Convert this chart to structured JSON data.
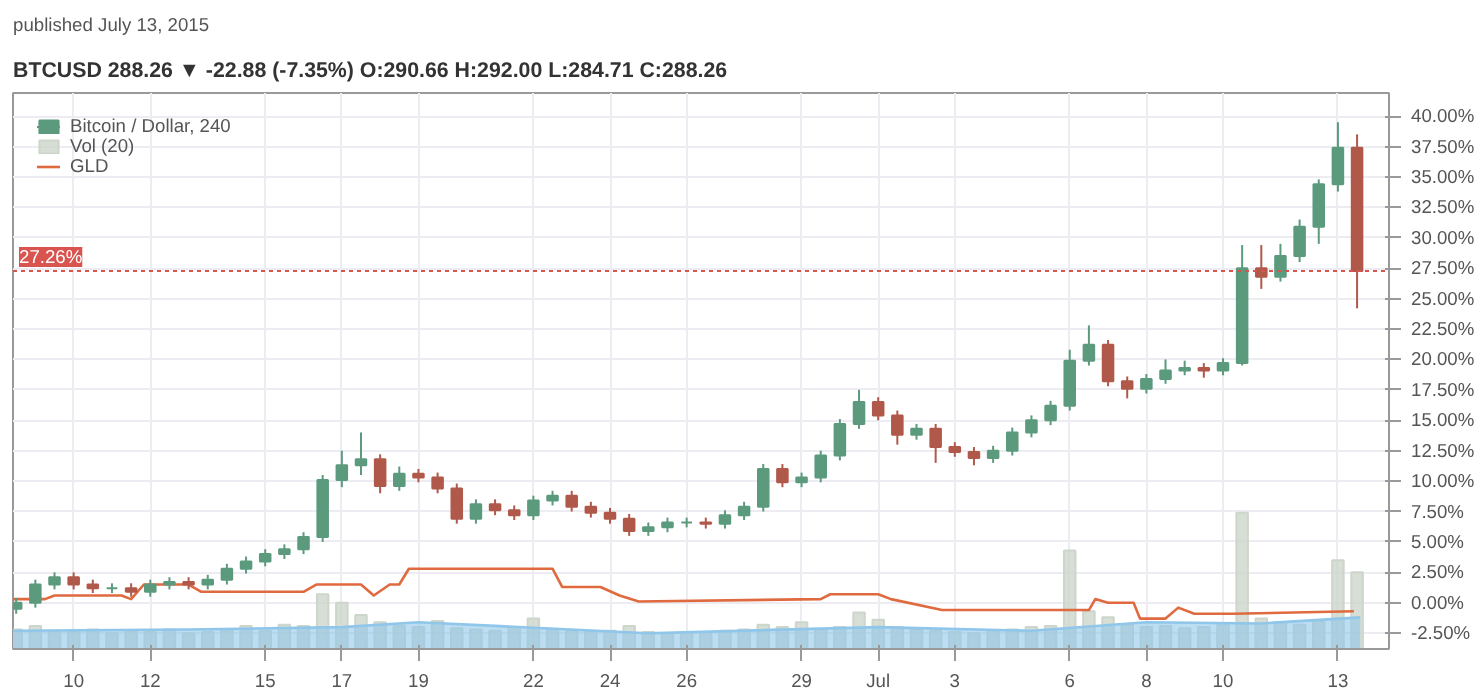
{
  "chart_data": {
    "type": "candlestick",
    "subtitle": "published July 13, 2015",
    "title": "BTCUSD 288.26 ▼ -22.88 (-7.35%) O:290.66 H:292.00 L:284.71 C:288.26",
    "x": [
      "2015-06-08T12:00",
      "2015-06-09T00:00",
      "2015-06-09T12:00",
      "2015-06-10T00:00",
      "2015-06-10T12:00",
      "2015-06-11T00:00",
      "2015-06-11T12:00",
      "2015-06-12T00:00",
      "2015-06-12T12:00",
      "2015-06-13T00:00",
      "2015-06-13T12:00",
      "2015-06-14T00:00",
      "2015-06-14T12:00",
      "2015-06-15T00:00",
      "2015-06-15T12:00",
      "2015-06-16T00:00",
      "2015-06-16T12:00",
      "2015-06-17T00:00",
      "2015-06-17T12:00",
      "2015-06-18T00:00",
      "2015-06-18T12:00",
      "2015-06-19T00:00",
      "2015-06-19T12:00",
      "2015-06-20T00:00",
      "2015-06-20T12:00",
      "2015-06-21T00:00",
      "2015-06-21T12:00",
      "2015-06-22T00:00",
      "2015-06-22T12:00",
      "2015-06-23T00:00",
      "2015-06-23T12:00",
      "2015-06-24T00:00",
      "2015-06-24T12:00",
      "2015-06-25T00:00",
      "2015-06-25T12:00",
      "2015-06-26T00:00",
      "2015-06-26T12:00",
      "2015-06-27T00:00",
      "2015-06-27T12:00",
      "2015-06-28T00:00",
      "2015-06-28T12:00",
      "2015-06-29T00:00",
      "2015-06-29T12:00",
      "2015-06-30T00:00",
      "2015-06-30T12:00",
      "2015-07-01T00:00",
      "2015-07-01T12:00",
      "2015-07-02T00:00",
      "2015-07-02T12:00",
      "2015-07-03T00:00",
      "2015-07-03T12:00",
      "2015-07-04T00:00",
      "2015-07-04T12:00",
      "2015-07-05T00:00",
      "2015-07-05T12:00",
      "2015-07-06T00:00",
      "2015-07-06T12:00",
      "2015-07-07T00:00",
      "2015-07-07T12:00",
      "2015-07-08T00:00",
      "2015-07-08T12:00",
      "2015-07-09T00:00",
      "2015-07-09T12:00",
      "2015-07-10T00:00",
      "2015-07-10T12:00",
      "2015-07-11T00:00",
      "2015-07-11T12:00",
      "2015-07-12T00:00",
      "2015-07-12T12:00",
      "2015-07-13T00:00",
      "2015-07-13T12:00"
    ],
    "xlim": [
      "2015-06-08T10:00",
      "2015-07-14T08:00"
    ],
    "xticks": [
      {
        "value": "2015-06-10",
        "label": "10"
      },
      {
        "value": "2015-06-12",
        "label": "12"
      },
      {
        "value": "2015-06-15",
        "label": "15"
      },
      {
        "value": "2015-06-17",
        "label": "17"
      },
      {
        "value": "2015-06-19",
        "label": "19"
      },
      {
        "value": "2015-06-22",
        "label": "22"
      },
      {
        "value": "2015-06-24",
        "label": "24"
      },
      {
        "value": "2015-06-26",
        "label": "26"
      },
      {
        "value": "2015-06-29",
        "label": "29"
      },
      {
        "value": "2015-07-01",
        "label": "Jul"
      },
      {
        "value": "2015-07-03",
        "label": "3"
      },
      {
        "value": "2015-07-06",
        "label": "6"
      },
      {
        "value": "2015-07-08",
        "label": "8"
      },
      {
        "value": "2015-07-10",
        "label": "10"
      },
      {
        "value": "2015-07-13",
        "label": "13"
      }
    ],
    "ylim": [
      -3.8,
      41.9
    ],
    "yticks": [
      {
        "value": -2.5,
        "label": "-2.50%"
      },
      {
        "value": 0,
        "label": "0.00%"
      },
      {
        "value": 2.5,
        "label": "2.50%"
      },
      {
        "value": 5,
        "label": "5.00%"
      },
      {
        "value": 7.5,
        "label": "7.50%"
      },
      {
        "value": 10,
        "label": "10.00%"
      },
      {
        "value": 12.5,
        "label": "12.50%"
      },
      {
        "value": 15,
        "label": "15.00%"
      },
      {
        "value": 17.5,
        "label": "17.50%"
      },
      {
        "value": 20,
        "label": "20.00%"
      },
      {
        "value": 22.5,
        "label": "22.50%"
      },
      {
        "value": 25,
        "label": "25.00%"
      },
      {
        "value": 27.5,
        "label": "27.50%"
      },
      {
        "value": 30,
        "label": "30.00%"
      },
      {
        "value": 32.5,
        "label": "32.50%"
      },
      {
        "value": 35,
        "label": "35.00%"
      },
      {
        "value": 37.5,
        "label": "37.50%"
      },
      {
        "value": 40,
        "label": "40.00%"
      }
    ],
    "grid": true,
    "legend": "top left",
    "ref_lines": [
      {
        "axis": "y",
        "value": 27.26,
        "label": "27.26%",
        "color": "#d9534f"
      }
    ],
    "series": [
      {
        "name": "Bitcoin / Dollar, 240",
        "ohlc": [
          [
            -0.5,
            0.4,
            -0.9,
            0.0
          ],
          [
            0.0,
            1.9,
            -0.4,
            1.5
          ],
          [
            1.5,
            2.5,
            1.1,
            2.1
          ],
          [
            2.1,
            2.5,
            1.1,
            1.5
          ],
          [
            1.5,
            1.9,
            0.8,
            1.2
          ],
          [
            1.2,
            1.6,
            0.8,
            1.2
          ],
          [
            1.2,
            1.6,
            0.5,
            0.9
          ],
          [
            0.9,
            1.9,
            0.5,
            1.5
          ],
          [
            1.5,
            2.1,
            1.1,
            1.7
          ],
          [
            1.7,
            2.1,
            1.1,
            1.5
          ],
          [
            1.5,
            2.3,
            1.1,
            1.9
          ],
          [
            1.9,
            3.2,
            1.5,
            2.8
          ],
          [
            2.8,
            3.8,
            2.4,
            3.4
          ],
          [
            3.4,
            4.4,
            3.0,
            4.0
          ],
          [
            4.0,
            4.8,
            3.6,
            4.4
          ],
          [
            4.4,
            5.8,
            4.0,
            5.4
          ],
          [
            5.4,
            10.5,
            5.0,
            10.1
          ],
          [
            10.1,
            12.5,
            9.5,
            11.3
          ],
          [
            11.3,
            14.0,
            10.5,
            11.8
          ],
          [
            11.8,
            12.2,
            9.0,
            9.6
          ],
          [
            9.6,
            11.2,
            9.2,
            10.6
          ],
          [
            10.6,
            11.0,
            9.9,
            10.3
          ],
          [
            10.3,
            10.7,
            9.0,
            9.4
          ],
          [
            9.4,
            9.8,
            6.5,
            6.9
          ],
          [
            6.9,
            8.5,
            6.5,
            8.1
          ],
          [
            8.1,
            8.5,
            7.2,
            7.6
          ],
          [
            7.6,
            8.0,
            6.8,
            7.2
          ],
          [
            7.2,
            8.8,
            6.8,
            8.4
          ],
          [
            8.4,
            9.2,
            8.0,
            8.8
          ],
          [
            8.8,
            9.2,
            7.5,
            7.9
          ],
          [
            7.9,
            8.3,
            7.0,
            7.4
          ],
          [
            7.4,
            7.8,
            6.5,
            6.9
          ],
          [
            6.9,
            7.3,
            5.5,
            5.9
          ],
          [
            5.9,
            6.6,
            5.5,
            6.2
          ],
          [
            6.2,
            7.0,
            5.8,
            6.6
          ],
          [
            6.6,
            7.0,
            6.2,
            6.6
          ],
          [
            6.6,
            7.0,
            6.1,
            6.5
          ],
          [
            6.5,
            7.6,
            6.1,
            7.2
          ],
          [
            7.2,
            8.3,
            6.8,
            7.9
          ],
          [
            7.9,
            11.4,
            7.5,
            11.0
          ],
          [
            11.0,
            11.4,
            9.5,
            9.9
          ],
          [
            9.9,
            10.7,
            9.5,
            10.3
          ],
          [
            10.3,
            12.5,
            9.9,
            12.1
          ],
          [
            12.1,
            15.1,
            11.7,
            14.7
          ],
          [
            14.7,
            17.5,
            14.3,
            16.5
          ],
          [
            16.5,
            16.9,
            15.0,
            15.4
          ],
          [
            15.4,
            15.8,
            13.0,
            13.8
          ],
          [
            13.8,
            14.7,
            13.4,
            14.3
          ],
          [
            14.3,
            14.7,
            11.5,
            12.8
          ],
          [
            12.8,
            13.2,
            12.0,
            12.4
          ],
          [
            12.4,
            12.8,
            11.3,
            11.9
          ],
          [
            11.9,
            12.9,
            11.5,
            12.5
          ],
          [
            12.5,
            14.4,
            12.1,
            14.0
          ],
          [
            14.0,
            15.4,
            13.6,
            15.0
          ],
          [
            15.0,
            16.6,
            14.6,
            16.2
          ],
          [
            16.2,
            20.8,
            15.8,
            19.9
          ],
          [
            19.9,
            22.8,
            19.5,
            21.2
          ],
          [
            21.2,
            21.6,
            17.8,
            18.2
          ],
          [
            18.2,
            18.6,
            16.8,
            17.6
          ],
          [
            17.6,
            18.8,
            17.2,
            18.4
          ],
          [
            18.4,
            20.0,
            18.0,
            19.1
          ],
          [
            19.1,
            19.9,
            18.7,
            19.3
          ],
          [
            19.3,
            19.7,
            18.5,
            19.1
          ],
          [
            19.1,
            20.1,
            18.7,
            19.7
          ],
          [
            19.7,
            29.4,
            19.5,
            27.5
          ],
          [
            27.5,
            29.4,
            25.8,
            26.8
          ],
          [
            26.8,
            29.5,
            26.4,
            28.5
          ],
          [
            28.5,
            31.5,
            28.0,
            30.9
          ],
          [
            30.9,
            34.8,
            29.5,
            34.4
          ],
          [
            34.4,
            39.5,
            33.8,
            37.4
          ],
          [
            37.4,
            38.5,
            24.2,
            27.26
          ]
        ],
        "colors": [
          "#5b9a7d",
          "#5b9a7d",
          "#5b9a7d",
          "#b0584a",
          "#b0584a",
          "#5b9a7d",
          "#b0584a",
          "#5b9a7d",
          "#5b9a7d",
          "#b0584a",
          "#5b9a7d",
          "#5b9a7d",
          "#5b9a7d",
          "#5b9a7d",
          "#5b9a7d",
          "#5b9a7d",
          "#5b9a7d",
          "#5b9a7d",
          "#5b9a7d",
          "#b0584a",
          "#5b9a7d",
          "#b0584a",
          "#b0584a",
          "#b0584a",
          "#5b9a7d",
          "#b0584a",
          "#b0584a",
          "#5b9a7d",
          "#5b9a7d",
          "#b0584a",
          "#b0584a",
          "#b0584a",
          "#b0584a",
          "#5b9a7d",
          "#5b9a7d",
          "#5b9a7d",
          "#b0584a",
          "#5b9a7d",
          "#5b9a7d",
          "#5b9a7d",
          "#b0584a",
          "#5b9a7d",
          "#5b9a7d",
          "#5b9a7d",
          "#5b9a7d",
          "#b0584a",
          "#b0584a",
          "#5b9a7d",
          "#b0584a",
          "#b0584a",
          "#b0584a",
          "#5b9a7d",
          "#5b9a7d",
          "#5b9a7d",
          "#5b9a7d",
          "#5b9a7d",
          "#5b9a7d",
          "#b0584a",
          "#b0584a",
          "#5b9a7d",
          "#5b9a7d",
          "#5b9a7d",
          "#b0584a",
          "#5b9a7d",
          "#5b9a7d",
          "#b0584a",
          "#5b9a7d",
          "#5b9a7d",
          "#5b9a7d",
          "#5b9a7d",
          "#b0584a"
        ]
      },
      {
        "name": "Vol (20)",
        "type": "bar",
        "color": "#cdd6ca",
        "base": [
          -3.8,
          -3.8,
          -3.8,
          -3.8,
          -3.8,
          -3.8,
          -3.8,
          -3.8,
          -3.8,
          -3.8,
          -3.8,
          -3.8,
          -3.8,
          -3.8,
          -3.8,
          -3.8,
          -3.8,
          -3.8,
          -3.8,
          -3.8,
          -3.8,
          -3.8,
          -3.8,
          -3.8,
          -3.8,
          -3.8,
          -3.8,
          -3.8,
          -3.8,
          -3.8,
          -3.8,
          -3.8,
          -3.8,
          -3.8,
          -3.8,
          -3.8,
          -3.8,
          -3.8,
          -3.8,
          -3.8,
          -3.8,
          -3.8,
          -3.8,
          -3.8,
          -3.8,
          -3.8,
          -3.8,
          -3.8,
          -3.8,
          -3.8,
          -3.8,
          -3.8,
          -3.8,
          -3.8,
          -3.8,
          -3.8,
          -3.8,
          -3.8,
          -3.8,
          -3.8,
          -3.8,
          -3.8,
          -3.8,
          -3.8,
          -3.8,
          -3.8,
          -3.8,
          -3.8,
          -3.8,
          -3.8,
          -3.8
        ],
        "values": [
          1.6,
          1.9,
          1.5,
          1.4,
          1.6,
          1.3,
          1.5,
          1.4,
          1.6,
          1.3,
          1.4,
          1.5,
          1.9,
          1.5,
          2.0,
          1.9,
          4.5,
          3.8,
          2.8,
          2.2,
          1.9,
          1.8,
          2.3,
          1.7,
          1.6,
          1.5,
          1.8,
          2.5,
          1.6,
          1.5,
          1.4,
          1.5,
          1.9,
          1.4,
          1.3,
          1.3,
          1.4,
          1.5,
          1.6,
          2.0,
          1.8,
          2.2,
          1.6,
          1.8,
          3.0,
          2.4,
          1.8,
          1.6,
          1.5,
          1.4,
          1.3,
          1.5,
          1.6,
          1.8,
          1.9,
          8.1,
          3.1,
          2.6,
          2.0,
          1.8,
          1.9,
          1.7,
          1.8,
          2.0,
          11.2,
          2.5,
          2.2,
          2.0,
          2.3,
          7.3,
          6.3
        ]
      },
      {
        "type": "line",
        "color": "#8fc6ea",
        "lower": [
          -3.8,
          -3.8,
          -3.8,
          -3.8,
          -3.8,
          -3.8,
          -3.8,
          -3.8,
          -3.8,
          -3.8,
          -3.8
        ],
        "upper": [
          -2.3,
          -2.2,
          -2.0,
          -1.6,
          -1.9,
          -2.5,
          -2.0,
          -2.3,
          -1.6,
          -1.7,
          -1.2
        ],
        "x": [
          "2015-06-08T10:00",
          "2015-06-13",
          "2015-06-17",
          "2015-06-19",
          "2015-06-21",
          "2015-06-25",
          "2015-07-01",
          "2015-07-05",
          "2015-07-08",
          "2015-07-11",
          "2015-07-13T14:00"
        ],
        "values": [
          -2.3,
          -2.2,
          -2.0,
          -1.6,
          -1.9,
          -2.5,
          -2.0,
          -2.3,
          -1.6,
          -1.7,
          -1.2
        ]
      },
      {
        "name": "GLD",
        "type": "line",
        "color": "#e06a3f",
        "x": [
          "2015-06-08T10:00",
          "2015-06-09T06:00",
          "2015-06-09T12:00",
          "2015-06-11T06:00",
          "2015-06-11T12:00",
          "2015-06-11T20:00",
          "2015-06-13T00:00",
          "2015-06-13T08:00",
          "2015-06-16T00:00",
          "2015-06-16T08:00",
          "2015-06-17T12:00",
          "2015-06-17T20:00",
          "2015-06-18T06:00",
          "2015-06-18T12:00",
          "2015-06-18T18:00",
          "2015-06-22T12:00",
          "2015-06-22T18:00",
          "2015-06-23T18:00",
          "2015-06-24T06:00",
          "2015-06-24T18:00",
          "2015-06-29T12:00",
          "2015-06-29T18:00",
          "2015-07-01T00:00",
          "2015-07-01T08:00",
          "2015-07-02T16:00",
          "2015-07-06T12:00",
          "2015-07-06T16:00",
          "2015-07-07T00:00",
          "2015-07-07T16:00",
          "2015-07-07T20:00",
          "2015-07-08T12:00",
          "2015-07-08T20:00",
          "2015-07-09T06:00",
          "2015-07-10T06:00",
          "2015-07-13T10:00"
        ],
        "values": [
          0.3,
          0.3,
          0.6,
          0.6,
          0.3,
          1.5,
          1.5,
          0.9,
          0.9,
          1.5,
          1.5,
          0.6,
          1.5,
          1.5,
          2.8,
          2.8,
          1.3,
          1.3,
          0.6,
          0.1,
          0.3,
          0.7,
          0.7,
          0.3,
          -0.6,
          -0.6,
          0.3,
          0.0,
          0.0,
          -1.3,
          -1.3,
          -0.4,
          -0.9,
          -0.9,
          -0.7
        ]
      }
    ]
  }
}
